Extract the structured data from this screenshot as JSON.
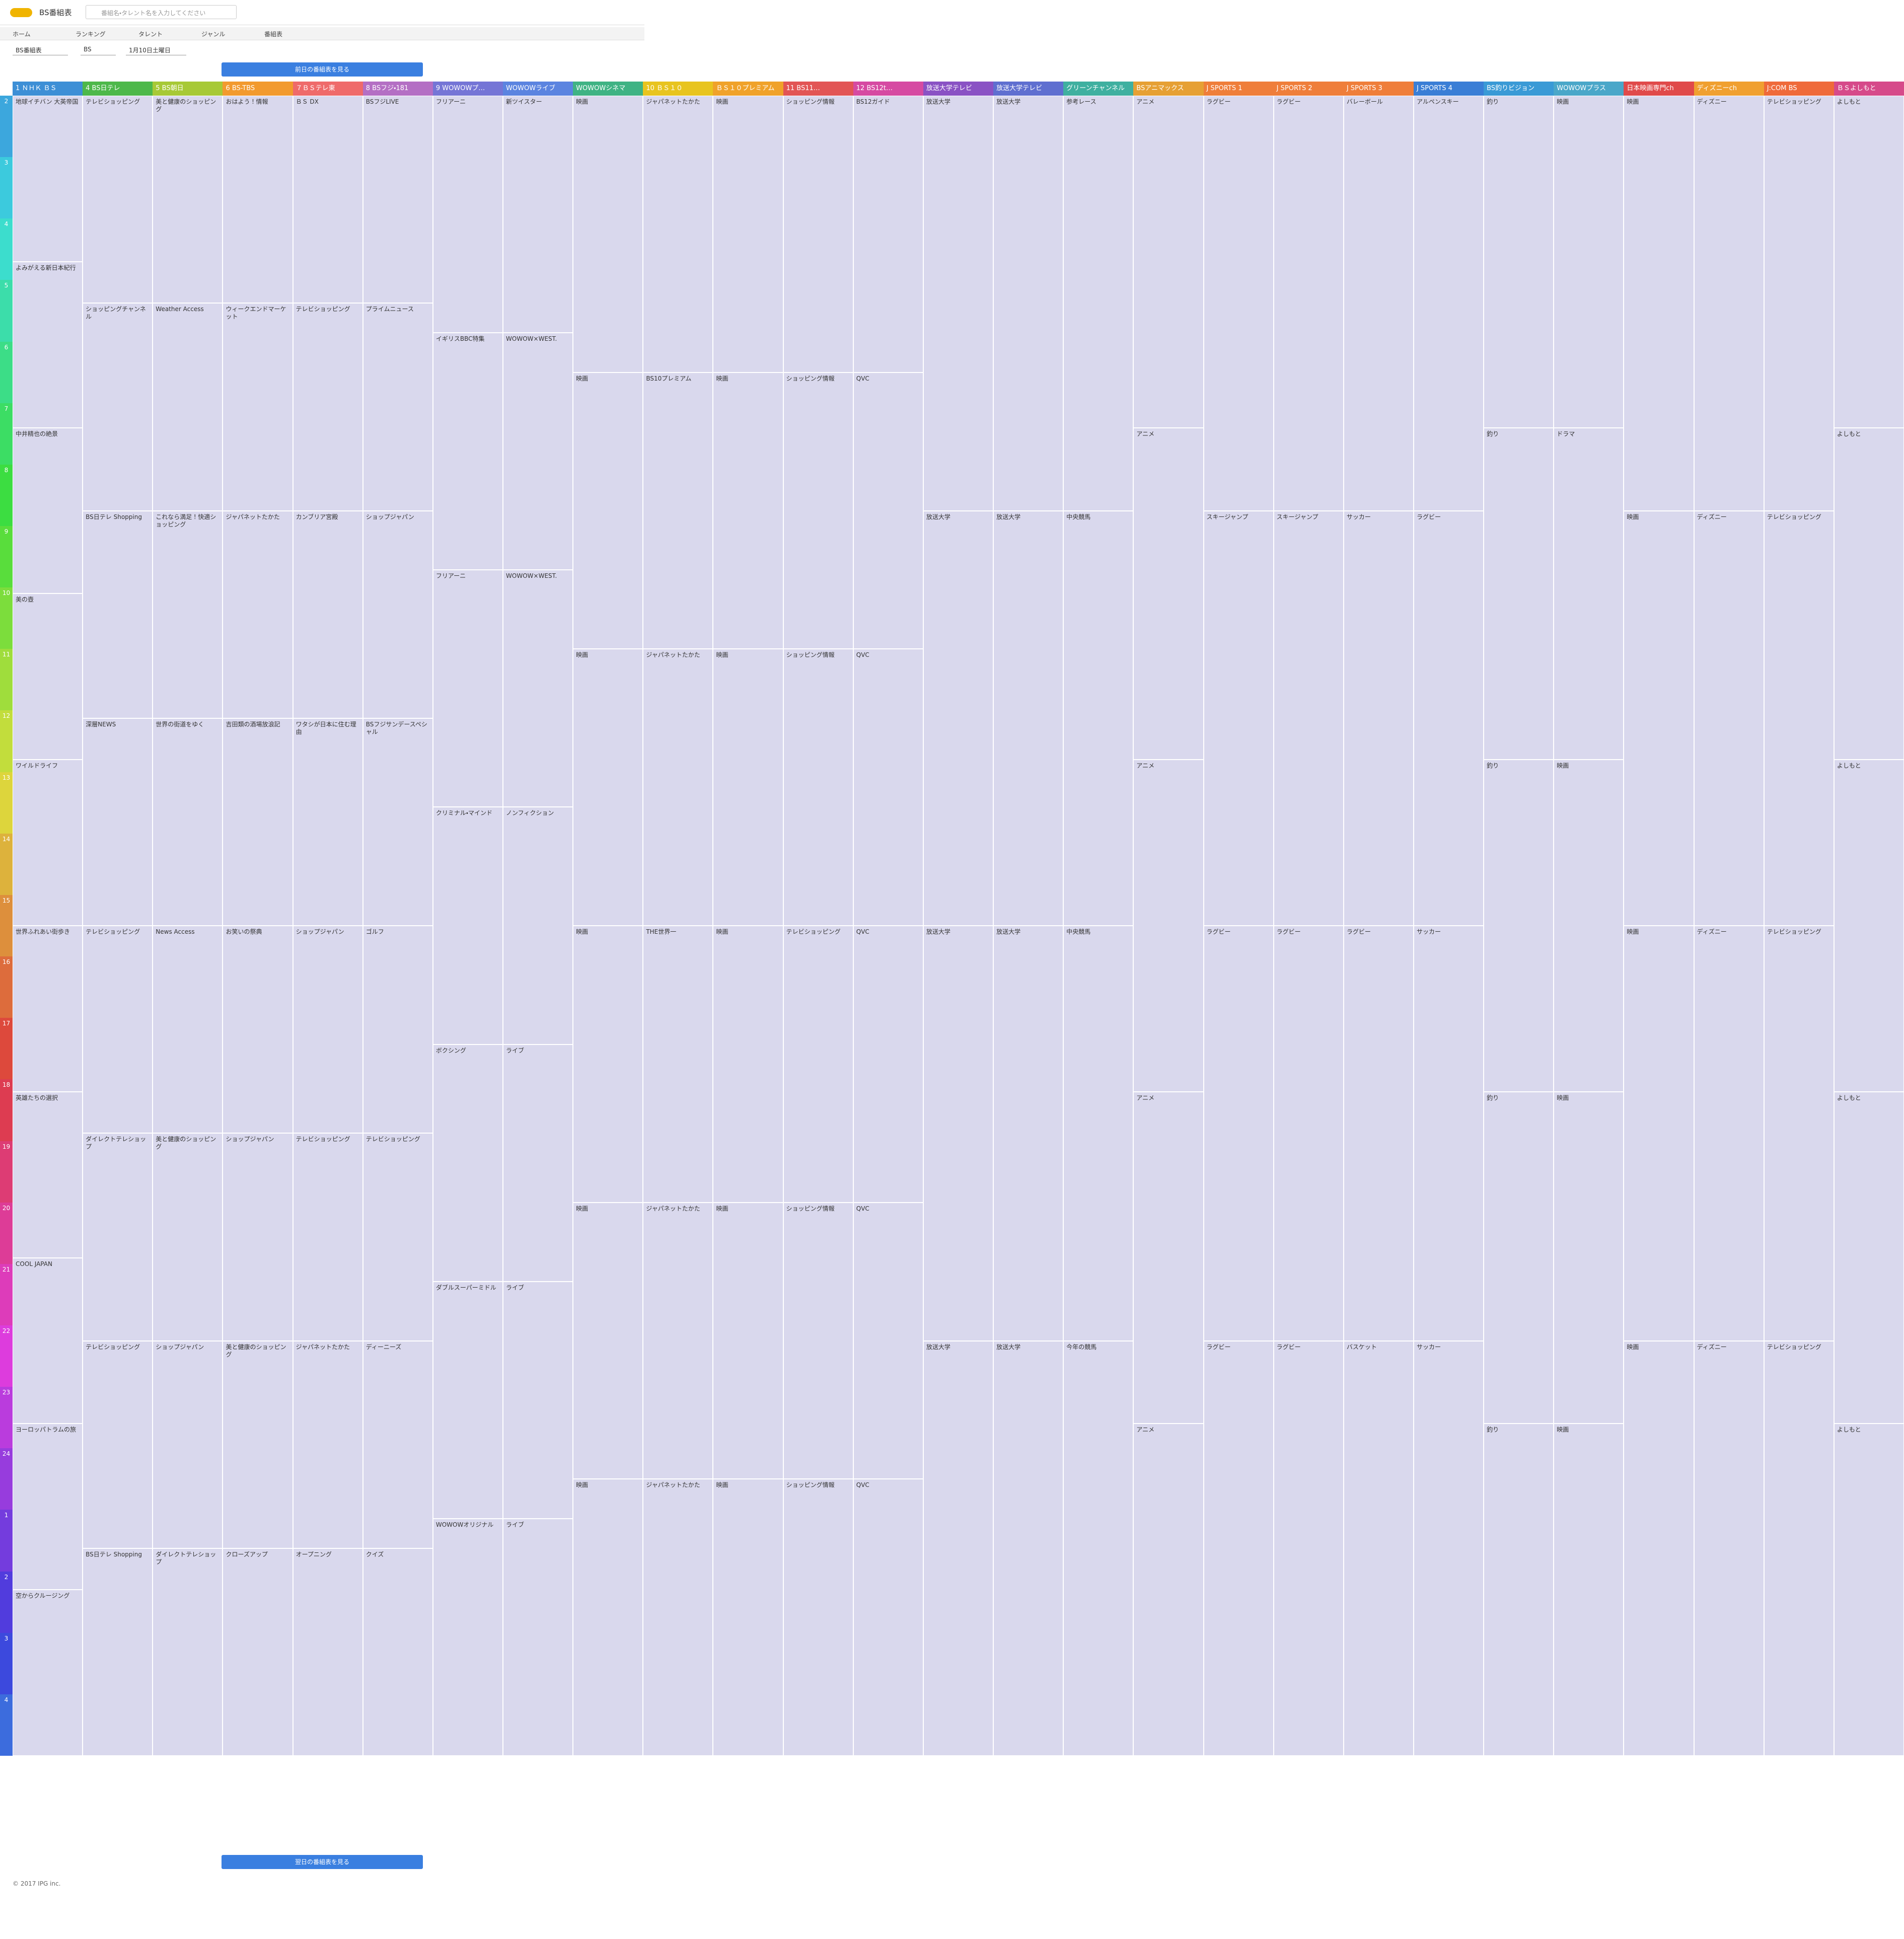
{
  "header": {
    "logo": "BS番組表",
    "search_placeholder": "番組名・タレント名を入力してください"
  },
  "nav": [
    "ホーム",
    "ランキング",
    "タレント",
    "ジャンル",
    "番組表"
  ],
  "selects": [
    "BS番組表",
    "BS",
    "1月10日土曜日"
  ],
  "prev_button": "前日の番組表を見る",
  "next_button": "翌日の番組表を見る",
  "footer": "© 2017 IPG inc.",
  "hours": [
    2,
    3,
    4,
    5,
    6,
    7,
    8,
    9,
    10,
    11,
    12,
    13,
    14,
    15,
    16,
    17,
    18,
    19,
    20,
    21,
    22,
    23,
    24,
    1,
    2,
    3,
    4
  ],
  "channels": [
    {
      "name": "1 ＮＨＫ ＢＳ",
      "color": "#3d8fd6",
      "programs": [
        "地球イチバン 大英帝国",
        "よみがえる新日本紀行",
        "中井精也の絶景",
        "美の壺",
        "ワイルドライフ",
        "世界ふれあい街歩き",
        "英雄たちの選択",
        "COOL JAPAN",
        "ヨーロッパトラムの旅",
        "空からクルージング"
      ]
    },
    {
      "name": "4 BS日テレ",
      "color": "#4db84a",
      "programs": [
        "テレビショッピング",
        "ショッピングチャンネル",
        "BS日テレ Shopping",
        "深層NEWS",
        "テレビショッピング",
        "ダイレクトテレショップ",
        "テレビショッピング",
        "BS日テレ Shopping"
      ]
    },
    {
      "name": "5 BS朝日",
      "color": "#a7c936",
      "programs": [
        "美と健康のショッピング",
        "Weather Access",
        "これなら満足！快適ショッピング",
        "世界の街道をゆく",
        "News Access",
        "美と健康のショッピング",
        "ショップジャパン",
        "ダイレクトテレショップ"
      ]
    },
    {
      "name": "6 BS-TBS",
      "color": "#f29a2e",
      "programs": [
        "おはよう！情報",
        "ウィークエンドマーケット",
        "ジャパネットたかた",
        "吉田類の酒場放浪記",
        "お笑いの祭典",
        "ショップジャパン",
        "美と健康のショッピング",
        "クローズアップ"
      ]
    },
    {
      "name": "７ＢＳテレ東",
      "color": "#ef6a6a",
      "programs": [
        "ＢＳ DX",
        "テレビショッピング",
        "カンブリア宮殿",
        "ワタシが日本に住む理由",
        "ショップジャパン",
        "テレビショッピング",
        "ジャパネットたかた",
        "オープニング"
      ]
    },
    {
      "name": "8 BSフジ・181",
      "color": "#b46fc4",
      "programs": [
        "BSフジLIVE",
        "プライムニュース",
        "ショップジャパン",
        "BSフジサンデースペシャル",
        "ゴルフ",
        "テレビショッピング",
        "ディーニーズ",
        "クイズ"
      ]
    },
    {
      "name": "9 WOWOWプ…",
      "color": "#7575d6",
      "programs": [
        "フリアーニ",
        "イギリスBBC特集",
        "フリアーニ",
        "クリミナル・マインド",
        "ボクシング",
        "ダブルスーパーミドル",
        "WOWOWオリジナル"
      ]
    },
    {
      "name": "WOWOWライブ",
      "color": "#5b84e0",
      "programs": [
        "新ツイスター",
        "WOWOW×WEST.",
        "WOWOW×WEST.",
        "ノンフィクション",
        "ライブ",
        "ライブ",
        "ライブ"
      ]
    },
    {
      "name": "WOWOWシネマ",
      "color": "#3fb384",
      "programs": [
        "映画",
        "映画",
        "映画",
        "映画",
        "映画",
        "映画"
      ]
    },
    {
      "name": "10 ＢＳ１０",
      "color": "#e8c41f",
      "programs": [
        "ジャパネットたかた",
        "BS10プレミアム",
        "ジャパネットたかた",
        "THE世界一",
        "ジャパネットたかた",
        "ジャパネットたかた"
      ]
    },
    {
      "name": "ＢＳ１０プレミアム",
      "color": "#f0a22a",
      "programs": [
        "映画",
        "映画",
        "映画",
        "映画",
        "映画",
        "映画"
      ]
    },
    {
      "name": "11 BS11…",
      "color": "#e25555",
      "programs": [
        "ショッピング情報",
        "ショッピング情報",
        "ショッピング情報",
        "テレビショッピング",
        "ショッピング情報",
        "ショッピング情報"
      ]
    },
    {
      "name": "12 BS12t…",
      "color": "#d64aa2",
      "programs": [
        "BS12ガイド",
        "QVC",
        "QVC",
        "QVC",
        "QVC",
        "QVC"
      ]
    },
    {
      "name": "放送大学テレビ",
      "color": "#8a52c4",
      "programs": [
        "放送大学",
        "放送大学",
        "放送大学",
        "放送大学"
      ]
    },
    {
      "name": "放送大学テレビ",
      "color": "#5f6fd0",
      "programs": [
        "放送大学",
        "放送大学",
        "放送大学",
        "放送大学"
      ]
    },
    {
      "name": "グリーンチャンネル",
      "color": "#3fb0a0",
      "programs": [
        "参考レース",
        "中央競馬",
        "中央競馬",
        "今年の競馬"
      ]
    },
    {
      "name": "BSアニマックス",
      "color": "#e6a034",
      "programs": [
        "アニメ",
        "アニメ",
        "アニメ",
        "アニメ",
        "アニメ"
      ]
    },
    {
      "name": "J SPORTS 1",
      "color": "#ef7e3a",
      "programs": [
        "ラグビー",
        "スキージャンプ",
        "ラグビー",
        "ラグビー"
      ]
    },
    {
      "name": "J SPORTS 2",
      "color": "#ef7e3a",
      "programs": [
        "ラグビー",
        "スキージャンプ",
        "ラグビー",
        "ラグビー"
      ]
    },
    {
      "name": "J SPORTS 3",
      "color": "#ef7e3a",
      "programs": [
        "バレーボール",
        "サッカー",
        "ラグビー",
        "バスケット"
      ]
    },
    {
      "name": "J SPORTS 4",
      "color": "#3a7ed6",
      "programs": [
        "アルペンスキー",
        "ラグビー",
        "サッカー",
        "サッカー"
      ]
    },
    {
      "name": "BS釣りビジョン",
      "color": "#3a9ad6",
      "programs": [
        "釣り",
        "釣り",
        "釣り",
        "釣り",
        "釣り"
      ]
    },
    {
      "name": "WOWOWプラス",
      "color": "#4aa7c9",
      "programs": [
        "映画",
        "ドラマ",
        "映画",
        "映画",
        "映画"
      ]
    },
    {
      "name": "日本映画専門ch",
      "color": "#e04a4a",
      "programs": [
        "映画",
        "映画",
        "映画",
        "映画"
      ]
    },
    {
      "name": "ディズニーch",
      "color": "#f0a030",
      "programs": [
        "ディズニー",
        "ディズニー",
        "ディズニー",
        "ディズニー"
      ]
    },
    {
      "name": "J:COM BS",
      "color": "#ef6a3a",
      "programs": [
        "テレビショッピング",
        "テレビショッピング",
        "テレビショッピング",
        "テレビショッピング"
      ]
    },
    {
      "name": "ＢＳよしもと",
      "color": "#d64a8a",
      "programs": [
        "よしもと",
        "よしもと",
        "よしもと",
        "よしもと",
        "よしもと"
      ]
    }
  ]
}
